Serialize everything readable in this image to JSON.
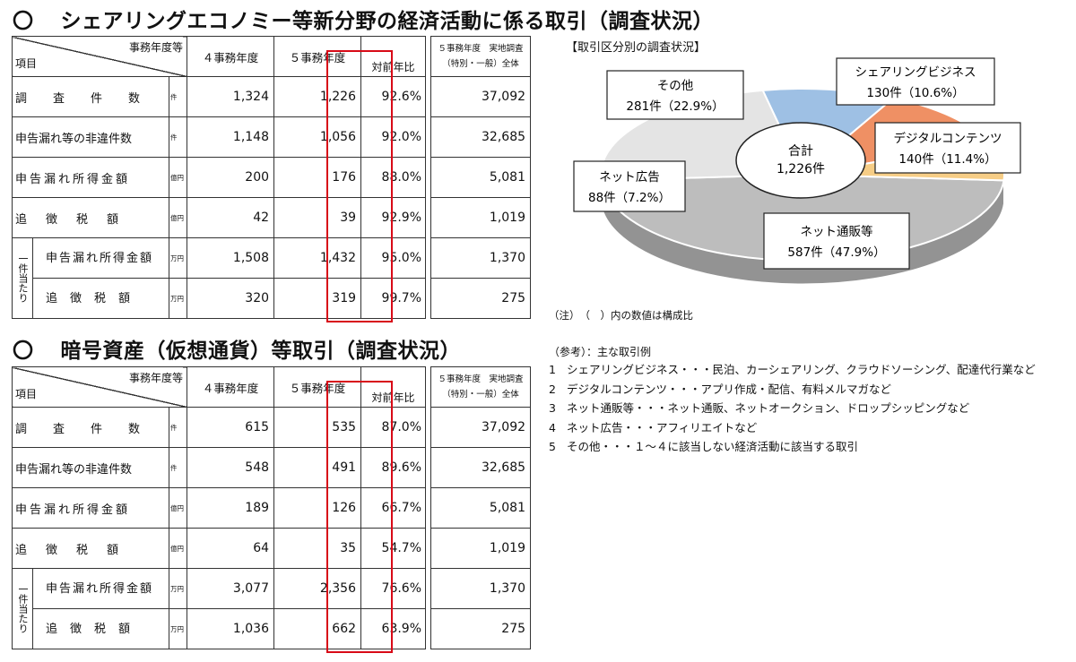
{
  "sections": [
    {
      "heading": "シェアリングエコノミー等新分野の経済活動に係る取引（調査状況）",
      "rows": [
        {
          "label": "調査件数",
          "unit": "件",
          "fy4": "1,324",
          "fy5": "1,226",
          "ratio": "92.6%",
          "total": "37,092"
        },
        {
          "label": "申告漏れ等の非違件数",
          "unit": "件",
          "fy4": "1,148",
          "fy5": "1,056",
          "ratio": "92.0%",
          "total": "32,685"
        },
        {
          "label": "申告漏れ所得金額",
          "unit": "億円",
          "fy4": "200",
          "fy5": "176",
          "ratio": "88.0%",
          "total": "5,081"
        },
        {
          "label": "追徴税額",
          "unit": "億円",
          "fy4": "42",
          "fy5": "39",
          "ratio": "92.9%",
          "total": "1,019"
        },
        {
          "label": "申告漏れ所得金額",
          "unit": "万円",
          "fy4": "1,508",
          "fy5": "1,432",
          "ratio": "95.0%",
          "total": "1,370"
        },
        {
          "label": "追徴税額",
          "unit": "万円",
          "fy4": "320",
          "fy5": "319",
          "ratio": "99.7%",
          "total": "275"
        }
      ]
    },
    {
      "heading": "暗号資産（仮想通貨）等取引（調査状況）",
      "rows": [
        {
          "label": "調査件数",
          "unit": "件",
          "fy4": "615",
          "fy5": "535",
          "ratio": "87.0%",
          "total": "37,092"
        },
        {
          "label": "申告漏れ等の非違件数",
          "unit": "件",
          "fy4": "548",
          "fy5": "491",
          "ratio": "89.6%",
          "total": "32,685"
        },
        {
          "label": "申告漏れ所得金額",
          "unit": "億円",
          "fy4": "189",
          "fy5": "126",
          "ratio": "66.7%",
          "total": "5,081"
        },
        {
          "label": "追徴税額",
          "unit": "億円",
          "fy4": "64",
          "fy5": "35",
          "ratio": "54.7%",
          "total": "1,019"
        },
        {
          "label": "申告漏れ所得金額",
          "unit": "万円",
          "fy4": "3,077",
          "fy5": "2,356",
          "ratio": "76.6%",
          "total": "1,370"
        },
        {
          "label": "追徴税額",
          "unit": "万円",
          "fy4": "1,036",
          "fy5": "662",
          "ratio": "63.9%",
          "total": "275"
        }
      ]
    }
  ],
  "table_header": {
    "year_label": "事務年度等",
    "item_label": "項目",
    "fy4_label": "４事務年度",
    "fy5_label": "５事務年度",
    "ratio_label": "対前年比",
    "total_label_line1": "５事務年度　実地調査",
    "total_label_line2": "（特別・一般）全体",
    "per_case_label": "一件当たり"
  },
  "pie": {
    "title": "【取引区分別の調査状況】",
    "center_label": "合計",
    "center_value": "1,226件",
    "slices": [
      {
        "name": "ネット通販等",
        "count": 587,
        "count_text": "587件（47.9%）",
        "share": 47.9,
        "color": "#bdbdbd"
      },
      {
        "name": "その他",
        "count": 281,
        "count_text": "281件（22.9%）",
        "share": 22.9,
        "color": "#e4e4e4"
      },
      {
        "name": "シェアリングビジネス",
        "count": 130,
        "count_text": "130件（10.6%）",
        "share": 10.6,
        "color": "#9ec0e4"
      },
      {
        "name": "デジタルコンテンツ",
        "count": 140,
        "count_text": "140件（11.4%）",
        "share": 11.4,
        "color": "#ef9064"
      },
      {
        "name": "ネット広告",
        "count": 88,
        "count_text": "88件（7.2%）",
        "share": 7.2,
        "color": "#f6cd86"
      }
    ]
  },
  "note": "（注）　（　）内の数値は構成比",
  "reference": {
    "title": "（参考）：主な取引例",
    "items": [
      {
        "no": "1",
        "text": "シェアリングビジネス・・・民泊、カーシェアリング、クラウドソーシング、配達代行業など"
      },
      {
        "no": "2",
        "text": "デジタルコンテンツ・・・アプリ作成・配信、有料メルマガなど"
      },
      {
        "no": "3",
        "text": "ネット通販等・・・ネット通販、ネットオークション、ドロップシッピングなど"
      },
      {
        "no": "4",
        "text": "ネット広告・・・アフィリエイトなど"
      },
      {
        "no": "5",
        "text": "その他・・・１～４に該当しない経済活動に該当する取引"
      }
    ]
  },
  "heading_mark": "〇"
}
